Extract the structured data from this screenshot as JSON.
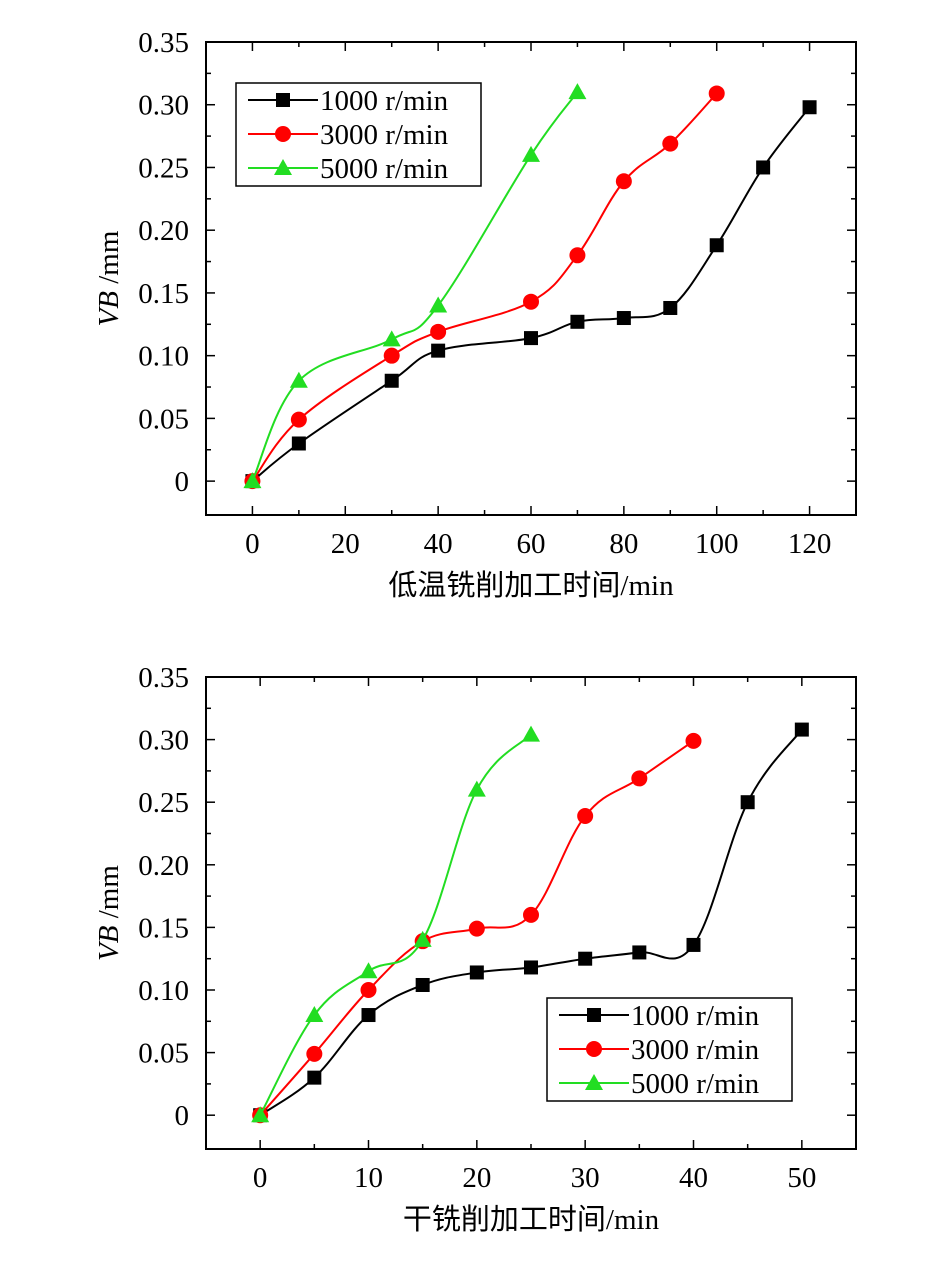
{
  "chart_data": [
    {
      "type": "line",
      "title": "",
      "xlabel": "低温铣削加工时间/min",
      "ylabel_italic": "VB",
      "ylabel_unit": " /mm",
      "xlim": [
        -10,
        130
      ],
      "ylim": [
        -0.027,
        0.35
      ],
      "x_ticks": [
        0,
        20,
        40,
        60,
        80,
        100,
        120
      ],
      "x_tick_labels": [
        "0",
        "20",
        "40",
        "60",
        "80",
        "100",
        "120"
      ],
      "y_ticks": [
        0,
        0.05,
        0.1,
        0.15,
        0.2,
        0.25,
        0.3,
        0.35
      ],
      "y_tick_labels": [
        "0",
        "0.05",
        "0.10",
        "0.15",
        "0.20",
        "0.25",
        "0.30",
        "0.35"
      ],
      "grid": false,
      "legend_position": "top-left",
      "series": [
        {
          "name": "1000 r/min",
          "color": "#000000",
          "marker": "square",
          "x": [
            0,
            10,
            30,
            40,
            60,
            70,
            80,
            90,
            100,
            110,
            120
          ],
          "y": [
            0,
            0.03,
            0.08,
            0.104,
            0.114,
            0.127,
            0.13,
            0.138,
            0.188,
            0.25,
            0.298
          ]
        },
        {
          "name": "3000 r/min",
          "color": "#ff0000",
          "marker": "circle",
          "x": [
            0,
            10,
            30,
            40,
            60,
            70,
            80,
            90,
            100
          ],
          "y": [
            0,
            0.049,
            0.1,
            0.119,
            0.143,
            0.18,
            0.239,
            0.269,
            0.309
          ]
        },
        {
          "name": "5000 r/min",
          "color": "#22dd22",
          "marker": "triangle",
          "x": [
            0,
            10,
            30,
            40,
            60,
            70
          ],
          "y": [
            0,
            0.08,
            0.113,
            0.14,
            0.26,
            0.31
          ]
        }
      ]
    },
    {
      "type": "line",
      "title": "",
      "xlabel": "干铣削加工时间/min",
      "ylabel_italic": "VB",
      "ylabel_unit": " /mm",
      "xlim": [
        -5,
        55
      ],
      "ylim": [
        -0.027,
        0.35
      ],
      "x_ticks": [
        0,
        10,
        20,
        30,
        40,
        50
      ],
      "x_tick_labels": [
        "0",
        "10",
        "20",
        "30",
        "40",
        "50"
      ],
      "y_ticks": [
        0,
        0.05,
        0.1,
        0.15,
        0.2,
        0.25,
        0.3,
        0.35
      ],
      "y_tick_labels": [
        "0",
        "0.05",
        "0.10",
        "0.15",
        "0.20",
        "0.25",
        "0.30",
        "0.35"
      ],
      "grid": false,
      "legend_position": "bottom-right",
      "series": [
        {
          "name": "1000 r/min",
          "color": "#000000",
          "marker": "square",
          "x": [
            0,
            5,
            10,
            15,
            20,
            25,
            30,
            35,
            40,
            45,
            50
          ],
          "y": [
            0,
            0.03,
            0.08,
            0.104,
            0.114,
            0.118,
            0.125,
            0.13,
            0.136,
            0.25,
            0.308
          ]
        },
        {
          "name": "3000 r/min",
          "color": "#ff0000",
          "marker": "circle",
          "x": [
            0,
            5,
            10,
            15,
            20,
            25,
            30,
            35,
            40
          ],
          "y": [
            0,
            0.049,
            0.1,
            0.139,
            0.149,
            0.16,
            0.239,
            0.269,
            0.299
          ]
        },
        {
          "name": "5000 r/min",
          "color": "#22dd22",
          "marker": "triangle",
          "x": [
            0,
            5,
            10,
            15,
            20,
            25
          ],
          "y": [
            0,
            0.08,
            0.115,
            0.14,
            0.26,
            0.304
          ]
        }
      ]
    }
  ]
}
